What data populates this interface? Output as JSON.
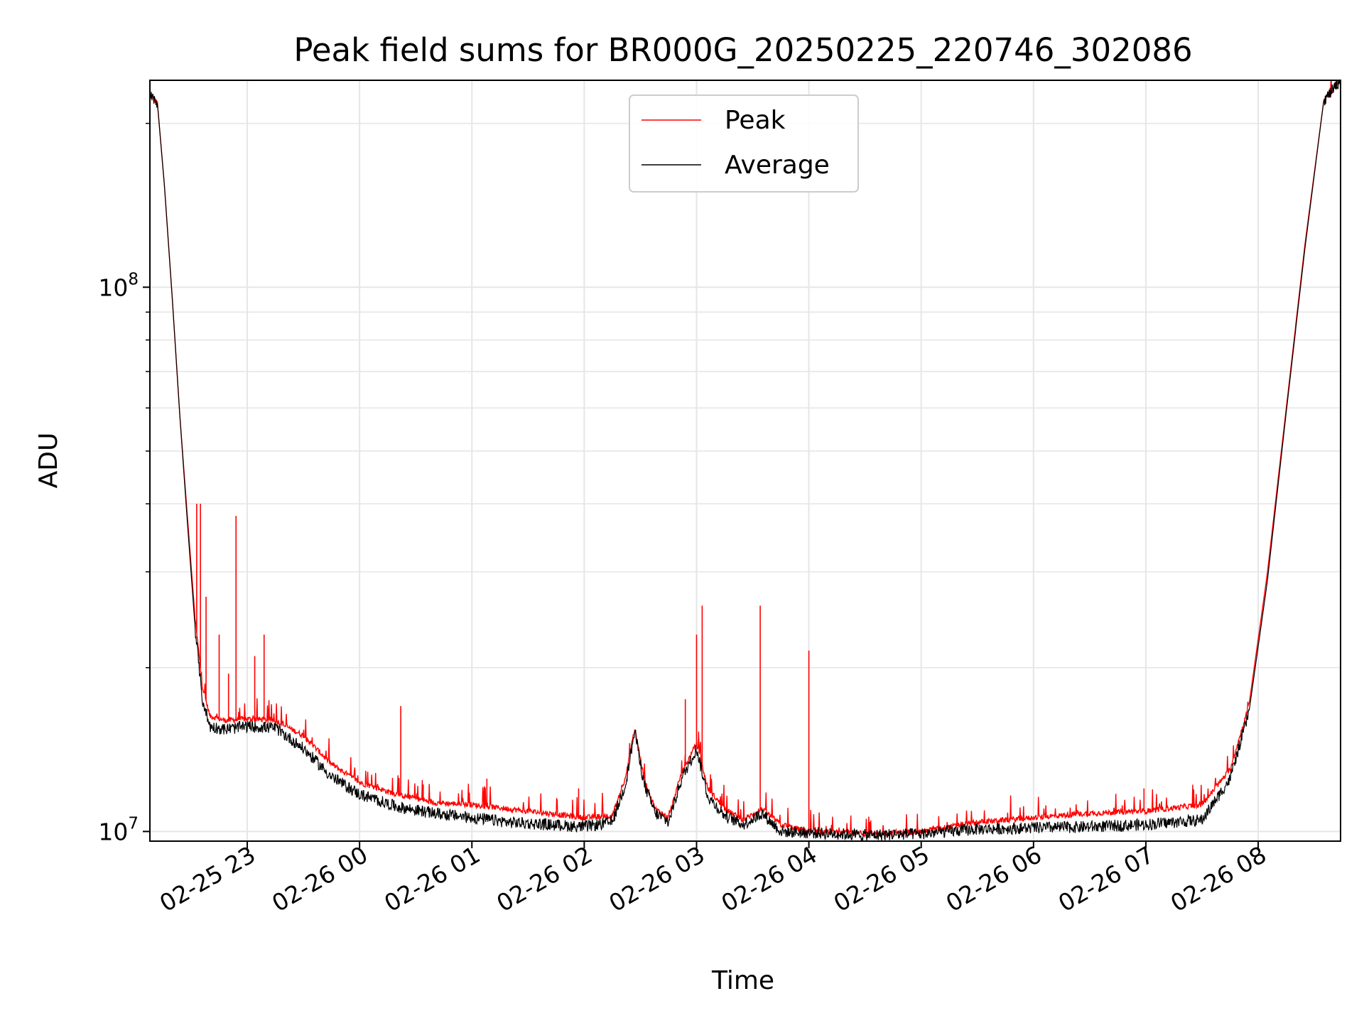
{
  "chart_data": {
    "type": "line",
    "title": "Peak field sums for BR000G_20250225_220746_302086",
    "xlabel": "Time",
    "ylabel": "ADU",
    "yscale": "log",
    "grid": true,
    "legend": "upper center",
    "x_ticks": [
      "02-25 23",
      "02-26 00",
      "02-26 01",
      "02-26 02",
      "02-26 03",
      "02-26 04",
      "02-26 05",
      "02-26 06",
      "02-26 07",
      "02-26 08"
    ],
    "y_ticks": [
      {
        "value": 10000000,
        "base": "10",
        "exp": "7"
      },
      {
        "value": 100000000,
        "base": "10",
        "exp": "8"
      }
    ],
    "xlim": [
      "2025-02-25 22:08",
      "2025-02-26 08:44"
    ],
    "ylim": [
      9600000,
      240000000
    ],
    "series": [
      {
        "name": "Peak",
        "color": "#ff0000",
        "points": [
          [
            "2025-02-25 22:08",
            225000000
          ],
          [
            "2025-02-25 22:12",
            218000000
          ],
          [
            "2025-02-25 22:16",
            150000000
          ],
          [
            "2025-02-25 22:20",
            95000000
          ],
          [
            "2025-02-25 22:24",
            58000000
          ],
          [
            "2025-02-25 22:28",
            38000000
          ],
          [
            "2025-02-25 22:32",
            25000000
          ],
          [
            "2025-02-25 22:36",
            18500000
          ],
          [
            "2025-02-25 22:40",
            16300000
          ],
          [
            "2025-02-25 22:48",
            16000000
          ],
          [
            "2025-02-25 23:00",
            16100000
          ],
          [
            "2025-02-25 23:15",
            16000000
          ],
          [
            "2025-02-25 23:30",
            15000000
          ],
          [
            "2025-02-25 23:45",
            13300000
          ],
          [
            "2025-02-26 00:00",
            12300000
          ],
          [
            "2025-02-26 00:20",
            11700000
          ],
          [
            "2025-02-26 00:40",
            11300000
          ],
          [
            "2025-02-26 01:00",
            11200000
          ],
          [
            "2025-02-26 01:20",
            11000000
          ],
          [
            "2025-02-26 01:40",
            10800000
          ],
          [
            "2025-02-26 02:00",
            10600000
          ],
          [
            "2025-02-26 02:15",
            10700000
          ],
          [
            "2025-02-26 02:22",
            12500000
          ],
          [
            "2025-02-26 02:27",
            15500000
          ],
          [
            "2025-02-26 02:32",
            12500000
          ],
          [
            "2025-02-26 02:38",
            11000000
          ],
          [
            "2025-02-26 02:45",
            10600000
          ],
          [
            "2025-02-26 02:52",
            12800000
          ],
          [
            "2025-02-26 03:00",
            14500000
          ],
          [
            "2025-02-26 03:06",
            12000000
          ],
          [
            "2025-02-26 03:15",
            11000000
          ],
          [
            "2025-02-26 03:25",
            10500000
          ],
          [
            "2025-02-26 03:35",
            11000000
          ],
          [
            "2025-02-26 03:45",
            10300000
          ],
          [
            "2025-02-26 04:00",
            10000000
          ],
          [
            "2025-02-26 04:30",
            9900000
          ],
          [
            "2025-02-26 05:00",
            10000000
          ],
          [
            "2025-02-26 05:30",
            10400000
          ],
          [
            "2025-02-26 06:00",
            10600000
          ],
          [
            "2025-02-26 06:30",
            10800000
          ],
          [
            "2025-02-26 07:00",
            10900000
          ],
          [
            "2025-02-26 07:30",
            11200000
          ],
          [
            "2025-02-26 07:45",
            13000000
          ],
          [
            "2025-02-26 07:55",
            17000000
          ],
          [
            "2025-02-26 08:05",
            30000000
          ],
          [
            "2025-02-26 08:15",
            60000000
          ],
          [
            "2025-02-26 08:25",
            120000000
          ],
          [
            "2025-02-26 08:35",
            220000000
          ],
          [
            "2025-02-26 08:44",
            240000000
          ]
        ],
        "spikes": [
          [
            "2025-02-25 22:33",
            40000000
          ],
          [
            "2025-02-25 22:35",
            40000000
          ],
          [
            "2025-02-25 22:38",
            27000000
          ],
          [
            "2025-02-25 22:45",
            23000000
          ],
          [
            "2025-02-25 22:50",
            19500000
          ],
          [
            "2025-02-25 22:54",
            38000000
          ],
          [
            "2025-02-25 23:04",
            21000000
          ],
          [
            "2025-02-25 23:09",
            23000000
          ],
          [
            "2025-02-26 00:22",
            17000000
          ],
          [
            "2025-02-26 00:34",
            12200000
          ],
          [
            "2025-02-26 01:08",
            12500000
          ],
          [
            "2025-02-26 01:57",
            12000000
          ],
          [
            "2025-02-26 02:54",
            17500000
          ],
          [
            "2025-02-26 03:00",
            23000000
          ],
          [
            "2025-02-26 03:03",
            26000000
          ],
          [
            "2025-02-26 03:34",
            26000000
          ],
          [
            "2025-02-26 04:00",
            21500000
          ],
          [
            "2025-02-26 06:59",
            12000000
          ]
        ]
      },
      {
        "name": "Average",
        "color": "#000000",
        "points": [
          [
            "2025-02-25 22:08",
            225000000
          ],
          [
            "2025-02-25 22:12",
            218000000
          ],
          [
            "2025-02-25 22:16",
            150000000
          ],
          [
            "2025-02-25 22:20",
            95000000
          ],
          [
            "2025-02-25 22:24",
            58000000
          ],
          [
            "2025-02-25 22:28",
            37000000
          ],
          [
            "2025-02-25 22:32",
            24000000
          ],
          [
            "2025-02-25 22:36",
            17500000
          ],
          [
            "2025-02-25 22:40",
            15600000
          ],
          [
            "2025-02-25 22:48",
            15400000
          ],
          [
            "2025-02-25 23:00",
            15600000
          ],
          [
            "2025-02-25 23:15",
            15500000
          ],
          [
            "2025-02-25 23:30",
            14200000
          ],
          [
            "2025-02-25 23:45",
            12600000
          ],
          [
            "2025-02-26 00:00",
            11700000
          ],
          [
            "2025-02-26 00:20",
            11100000
          ],
          [
            "2025-02-26 00:40",
            10800000
          ],
          [
            "2025-02-26 01:00",
            10600000
          ],
          [
            "2025-02-26 01:20",
            10400000
          ],
          [
            "2025-02-26 01:40",
            10300000
          ],
          [
            "2025-02-26 02:00",
            10200000
          ],
          [
            "2025-02-26 02:15",
            10400000
          ],
          [
            "2025-02-26 02:22",
            12200000
          ],
          [
            "2025-02-26 02:27",
            15300000
          ],
          [
            "2025-02-26 02:32",
            12200000
          ],
          [
            "2025-02-26 02:38",
            10800000
          ],
          [
            "2025-02-26 02:45",
            10400000
          ],
          [
            "2025-02-26 02:52",
            12500000
          ],
          [
            "2025-02-26 03:00",
            14200000
          ],
          [
            "2025-02-26 03:06",
            11600000
          ],
          [
            "2025-02-26 03:15",
            10700000
          ],
          [
            "2025-02-26 03:25",
            10300000
          ],
          [
            "2025-02-26 03:35",
            10800000
          ],
          [
            "2025-02-26 03:45",
            10000000
          ],
          [
            "2025-02-26 04:00",
            9950000
          ],
          [
            "2025-02-26 04:30",
            9850000
          ],
          [
            "2025-02-26 05:00",
            9900000
          ],
          [
            "2025-02-26 05:30",
            10100000
          ],
          [
            "2025-02-26 06:00",
            10150000
          ],
          [
            "2025-02-26 06:30",
            10200000
          ],
          [
            "2025-02-26 07:00",
            10300000
          ],
          [
            "2025-02-26 07:30",
            10500000
          ],
          [
            "2025-02-26 07:45",
            12500000
          ],
          [
            "2025-02-26 07:55",
            16500000
          ],
          [
            "2025-02-26 08:05",
            29000000
          ],
          [
            "2025-02-26 08:15",
            59000000
          ],
          [
            "2025-02-26 08:25",
            118000000
          ],
          [
            "2025-02-26 08:35",
            220000000
          ],
          [
            "2025-02-26 08:44",
            240000000
          ]
        ]
      }
    ]
  }
}
